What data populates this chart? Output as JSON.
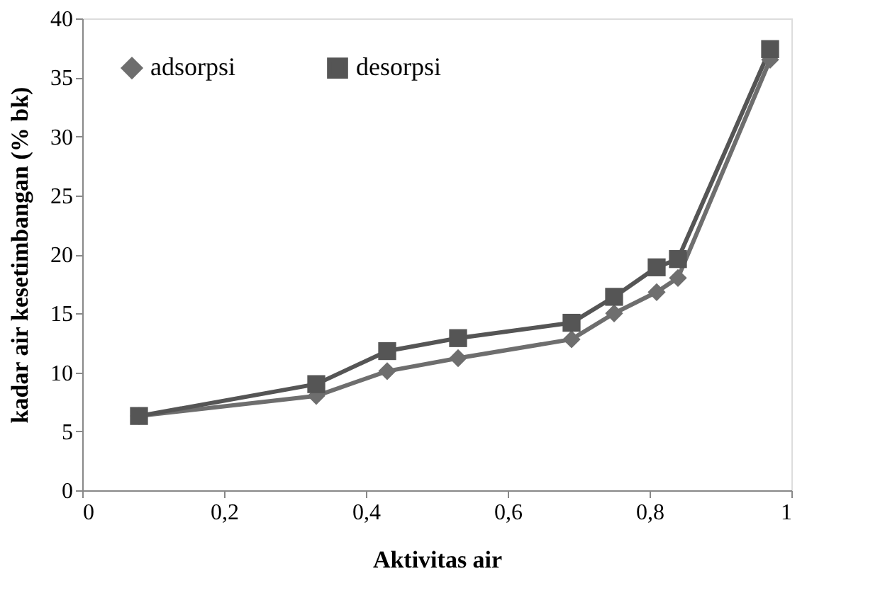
{
  "chart_data": {
    "type": "line",
    "xlabel": "Aktivitas air",
    "ylabel": "kadar air kesetimbangan (% bk)",
    "x": [
      0.08,
      0.33,
      0.43,
      0.53,
      0.69,
      0.75,
      0.81,
      0.84,
      0.97
    ],
    "series": [
      {
        "name": "adsorpsi",
        "color": "#6e6e6e",
        "marker": "diamond",
        "values": [
          6.3,
          8.0,
          10.1,
          11.2,
          12.8,
          15.0,
          16.8,
          18.0,
          36.5
        ]
      },
      {
        "name": "desorpsi",
        "color": "#555555",
        "marker": "square",
        "values": [
          6.3,
          9.0,
          11.8,
          12.9,
          14.2,
          16.4,
          18.9,
          19.6,
          37.4
        ]
      }
    ],
    "xlim": [
      0,
      1
    ],
    "xticks": [
      {
        "value": 0,
        "label": "0"
      },
      {
        "value": 0.2,
        "label": "0,2"
      },
      {
        "value": 0.4,
        "label": "0,4"
      },
      {
        "value": 0.6,
        "label": "0,6"
      },
      {
        "value": 0.8,
        "label": "0,8"
      },
      {
        "value": 1,
        "label": "1"
      }
    ],
    "ylim": [
      0,
      40
    ],
    "yticks": [
      0,
      5,
      10,
      15,
      20,
      25,
      30,
      35,
      40
    ],
    "grid": false,
    "legend": "top left",
    "line_style": "solid"
  }
}
